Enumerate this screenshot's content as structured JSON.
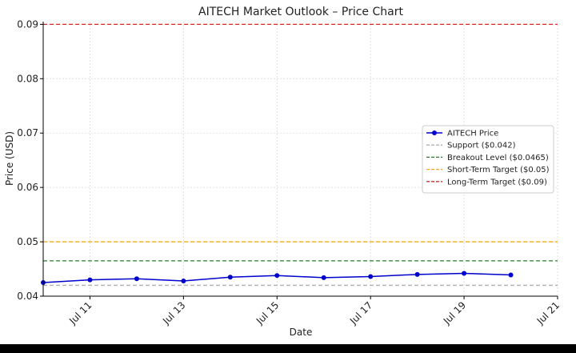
{
  "chart_data": {
    "type": "line",
    "title": "AITECH Market Outlook – Price Chart",
    "xlabel": "Date",
    "ylabel": "Price (USD)",
    "x_tick_labels": [
      "Jul 11",
      "Jul 13",
      "Jul 15",
      "Jul 17",
      "Jul 19",
      "Jul 21"
    ],
    "x_ticks": [
      "2024-07-11",
      "2024-07-13",
      "2024-07-15",
      "2024-07-17",
      "2024-07-19",
      "2024-07-21"
    ],
    "y_ticks": [
      0.04,
      0.05,
      0.06,
      0.07,
      0.08,
      0.09
    ],
    "y_tick_labels": [
      "0.04",
      "0.05",
      "0.06",
      "0.07",
      "0.08",
      "0.09"
    ],
    "xlim": [
      "2024-07-10",
      "2024-07-21"
    ],
    "ylim": [
      0.04,
      0.0905
    ],
    "grid": true,
    "legend_placement": "center-right",
    "series": [
      {
        "name": "AITECH Price",
        "color": "#0000cc",
        "marker": "circle",
        "x": [
          "2024-07-10",
          "2024-07-11",
          "2024-07-12",
          "2024-07-13",
          "2024-07-14",
          "2024-07-15",
          "2024-07-16",
          "2024-07-17",
          "2024-07-18",
          "2024-07-19",
          "2024-07-20"
        ],
        "values": [
          0.0425,
          0.043,
          0.0432,
          0.0428,
          0.0435,
          0.0438,
          0.0434,
          0.0436,
          0.044,
          0.0442,
          0.0439
        ]
      }
    ],
    "reference_lines": [
      {
        "name": "Support ($0.042)",
        "value": 0.042,
        "color": "#b0b0b0"
      },
      {
        "name": "Breakout Level ($0.0465)",
        "value": 0.0465,
        "color": "#2e7d32"
      },
      {
        "name": "Short-Term Target ($0.05)",
        "value": 0.05,
        "color": "#f5a623"
      },
      {
        "name": "Long-Term Target ($0.09)",
        "value": 0.09,
        "color": "#d32f2f"
      }
    ]
  }
}
